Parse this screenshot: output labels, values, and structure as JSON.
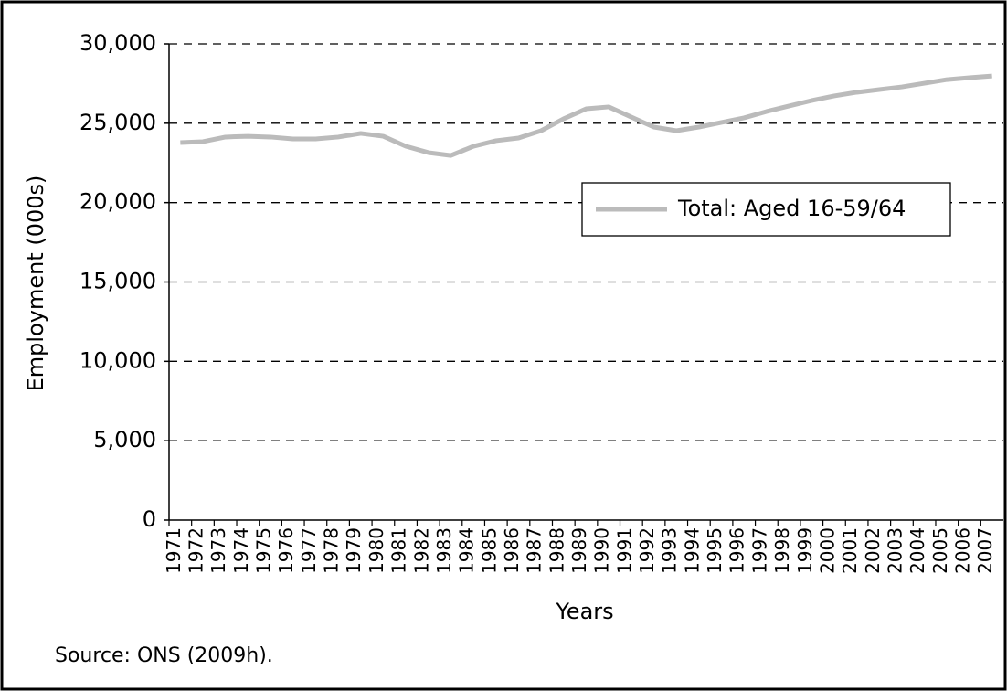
{
  "chart_data": {
    "type": "line",
    "y_label": "Employment (000s)",
    "x_label": "Years",
    "source": "Source: ONS (2009h).",
    "categories": [
      "1971",
      "1972",
      "1973",
      "1974",
      "1975",
      "1976",
      "1977",
      "1978",
      "1979",
      "1980",
      "1981",
      "1982",
      "1983",
      "1984",
      "1985",
      "1986",
      "1987",
      "1988",
      "1989",
      "1990",
      "1991",
      "1992",
      "1993",
      "1994",
      "1995",
      "1996",
      "1997",
      "1998",
      "1999",
      "2000",
      "2001",
      "2002",
      "2003",
      "2004",
      "2005",
      "2006",
      "2007"
    ],
    "series": [
      {
        "name": "Total: Aged 16-59/64",
        "color": "#bbbbbb",
        "values": [
          23780,
          23840,
          24130,
          24180,
          24130,
          24010,
          24010,
          24130,
          24360,
          24180,
          23550,
          23150,
          22970,
          23550,
          23900,
          24070,
          24530,
          25280,
          25910,
          26030,
          25390,
          24760,
          24530,
          24760,
          25050,
          25340,
          25740,
          26090,
          26430,
          26720,
          26950,
          27120,
          27290,
          27520,
          27750,
          27870,
          27980
        ]
      }
    ],
    "ylim": [
      0,
      30000
    ],
    "yticks": [
      0,
      {
        "value": 5000,
        "label": "5,000"
      },
      {
        "value": 10000,
        "label": "10,000"
      },
      {
        "value": 15000,
        "label": "15,000"
      },
      {
        "value": 20000,
        "label": "20,000"
      },
      {
        "value": 25000,
        "label": "25,000"
      },
      {
        "value": 30000,
        "label": "30,000"
      }
    ],
    "grid": true
  }
}
